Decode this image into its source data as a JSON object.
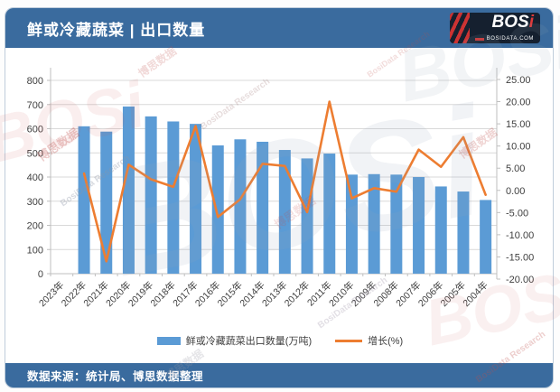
{
  "header": {
    "title": "鲜或冷藏蔬菜 | 出口数量",
    "logo": {
      "text": "BOS",
      "text_accent": "i",
      "subtext": "BOSIDATA.COM"
    }
  },
  "footer": {
    "source": "数据来源：统计局、博思数据整理"
  },
  "watermark": {
    "brand": "BOSi",
    "cn": "博思数据",
    "en": "BosiData Research"
  },
  "chart_data": {
    "type": "bar+line",
    "title": "鲜或冷藏蔬菜 | 出口数量",
    "categories": [
      "2023年",
      "2022年",
      "2021年",
      "2020年",
      "2019年",
      "2018年",
      "2017年",
      "2016年",
      "2015年",
      "2014年",
      "2013年",
      "2012年",
      "2011年",
      "2010年",
      "2009年",
      "2008年",
      "2007年",
      "2006年",
      "2005年",
      "2004年"
    ],
    "series": [
      {
        "name": "鲜或冷藏蔬菜出口数量(万吨)",
        "type": "bar",
        "axis": "left",
        "color": "#5B9BD5",
        "values": [
          null,
          610,
          588,
          692,
          651,
          630,
          620,
          531,
          556,
          546,
          512,
          477,
          497,
          410,
          412,
          410,
          400,
          361,
          340,
          305
        ]
      },
      {
        "name": "增长(%)",
        "type": "line",
        "axis": "right",
        "color": "#ED7D31",
        "values": [
          null,
          3.8,
          -16.0,
          5.8,
          2.5,
          0.8,
          14.5,
          -6.0,
          -2.0,
          6.0,
          5.5,
          -4.9,
          20.0,
          -1.8,
          0.5,
          -0.3,
          9.2,
          5.3,
          12.0,
          -1.0
        ]
      }
    ],
    "left_axis": {
      "min": 0,
      "max": 800,
      "step": 100,
      "decimals": 0
    },
    "right_axis": {
      "min": -20,
      "max": 25,
      "step": 5,
      "decimals": 2
    },
    "grid": true,
    "legend_position": "bottom",
    "note": "x axis reversed chronological; 2023 category has no plotted bar/line value"
  }
}
